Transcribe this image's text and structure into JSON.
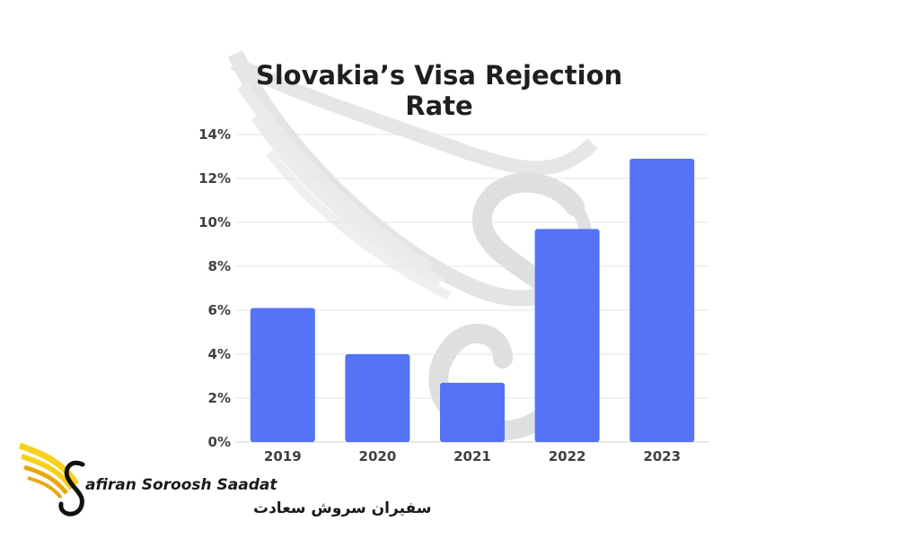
{
  "chart_data": {
    "type": "bar",
    "title_lines": [
      "Slovakia’s Visa Rejection",
      "Rate"
    ],
    "categories": [
      "2019",
      "2020",
      "2021",
      "2022",
      "2023"
    ],
    "values": [
      6.1,
      4.0,
      2.7,
      9.7,
      12.9
    ],
    "ylim": [
      0,
      14
    ],
    "yticks": [
      "0%",
      "2%",
      "4%",
      "6%",
      "8%",
      "10%",
      "12%",
      "14%"
    ],
    "ytick_values": [
      0,
      2,
      4,
      6,
      8,
      10,
      12,
      14
    ],
    "grid": true,
    "bar_color": "#4f6ef7",
    "grid_color": "#e6e6e6"
  },
  "logo": {
    "name_en": "afiran Soroosh Saadat",
    "name_fa": "سفیران سروش سعادت",
    "wing_color_light": "#f7d21a",
    "wing_color_dark": "#e7a80c",
    "swan_color": "#111111"
  },
  "watermark": {
    "color": "#d6d6d6"
  }
}
